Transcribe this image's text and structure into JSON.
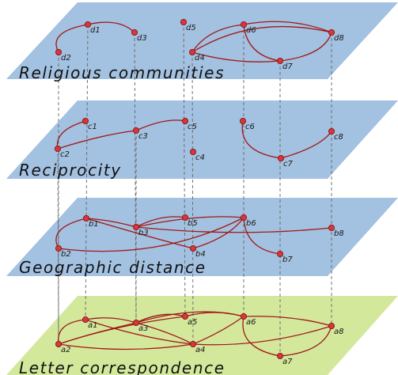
{
  "layers": [
    {
      "id": "religious",
      "title": "Religious communities",
      "color": "#a3c1e0",
      "nodes": [
        "d1",
        "d2",
        "d3",
        "d4",
        "d5",
        "d6",
        "d7",
        "d8"
      ],
      "edges": [
        [
          "d1",
          "d3"
        ],
        [
          "d1",
          "d2"
        ],
        [
          "d4",
          "d6"
        ],
        [
          "d4",
          "d8"
        ],
        [
          "d4",
          "d7"
        ],
        [
          "d6",
          "d8"
        ],
        [
          "d6",
          "d7"
        ],
        [
          "d7",
          "d8"
        ]
      ]
    },
    {
      "id": "reciprocity",
      "title": "Reciprocity",
      "color": "#a3c1e0",
      "nodes": [
        "c1",
        "c2",
        "c3",
        "c4",
        "c5",
        "c6",
        "c7",
        "c8"
      ],
      "edges": [
        [
          "c1",
          "c2"
        ],
        [
          "c2",
          "c3"
        ],
        [
          "c3",
          "c5"
        ],
        [
          "c6",
          "c7"
        ],
        [
          "c7",
          "c8"
        ]
      ]
    },
    {
      "id": "geographic",
      "title": "Geographic distance",
      "color": "#a3c1e0",
      "nodes": [
        "b1",
        "b2",
        "b3",
        "b4",
        "b5",
        "b6",
        "b7",
        "b8"
      ],
      "edges": [
        [
          "b1",
          "b2"
        ],
        [
          "b1",
          "b3"
        ],
        [
          "b1",
          "b4"
        ],
        [
          "b3",
          "b5"
        ],
        [
          "b3",
          "b6"
        ],
        [
          "b2",
          "b6"
        ],
        [
          "b3",
          "b8"
        ],
        [
          "b4",
          "b6"
        ],
        [
          "b6",
          "b7"
        ]
      ]
    },
    {
      "id": "letters",
      "title": "Letter correspondence",
      "color": "#d4e89c",
      "nodes": [
        "a1",
        "a2",
        "a3",
        "a4",
        "a5",
        "a6",
        "a7",
        "a8"
      ],
      "edges": [
        [
          "a1",
          "a2"
        ],
        [
          "a1",
          "a3"
        ],
        [
          "a1",
          "a4"
        ],
        [
          "a2",
          "a3"
        ],
        [
          "a2",
          "a5"
        ],
        [
          "a2",
          "a4"
        ],
        [
          "a3",
          "a5"
        ],
        [
          "a3",
          "a6"
        ],
        [
          "a3",
          "a4"
        ],
        [
          "a4",
          "a6"
        ],
        [
          "a5",
          "a6"
        ],
        [
          "a6",
          "a7"
        ],
        [
          "a6",
          "a8"
        ],
        [
          "a7",
          "a8"
        ],
        [
          "a8",
          "a4"
        ]
      ]
    }
  ]
}
